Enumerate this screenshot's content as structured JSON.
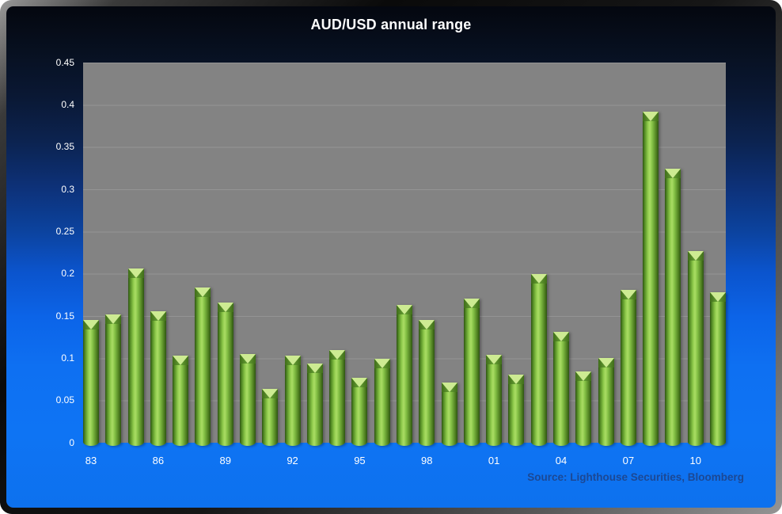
{
  "window": {
    "title": "AUD/USD annual range"
  },
  "colors": {
    "background_top": "#04070f",
    "background_bottom": "#0d71ee",
    "plot_background": "#838383",
    "bar_green_light": "#aadd64",
    "bar_green_dark": "#2e5413",
    "bar_cap_highlight": "#cdeb92",
    "axis_text": "#ffffff",
    "title_text": "#ffffff",
    "source_text": "#1c4894"
  },
  "source_note": "Source: Lighthouse Securities, Bloomberg",
  "chart_data": {
    "type": "bar",
    "title": "AUD/USD annual range",
    "xlabel": "",
    "ylabel": "",
    "categories": [
      "1983",
      "1984",
      "1985",
      "1986",
      "1987",
      "1988",
      "1989",
      "1990",
      "1991",
      "1992",
      "1993",
      "1994",
      "1995",
      "1996",
      "1997",
      "1998",
      "1999",
      "2000",
      "2001",
      "2002",
      "2003",
      "2004",
      "2005",
      "2006",
      "2007",
      "2008",
      "2009",
      "2010",
      "2011"
    ],
    "values": [
      0.145,
      0.152,
      0.206,
      0.156,
      0.103,
      0.184,
      0.166,
      0.105,
      0.064,
      0.103,
      0.094,
      0.11,
      0.077,
      0.099,
      0.163,
      0.145,
      0.071,
      0.171,
      0.104,
      0.081,
      0.2,
      0.131,
      0.084,
      0.1,
      0.181,
      0.392,
      0.324,
      0.227,
      0.178
    ],
    "x_tick_labels": [
      "83",
      "86",
      "89",
      "92",
      "95",
      "98",
      "01",
      "04",
      "07",
      "10"
    ],
    "x_tick_every": 3,
    "yticks": [
      "0",
      "0.05",
      "0.1",
      "0.15",
      "0.2",
      "0.25",
      "0.3",
      "0.35",
      "0.4",
      "0.45"
    ],
    "ylim": [
      0,
      0.45
    ],
    "grid": true,
    "legend_position": "none",
    "source": "Source: Lighthouse Securities, Bloomberg"
  }
}
